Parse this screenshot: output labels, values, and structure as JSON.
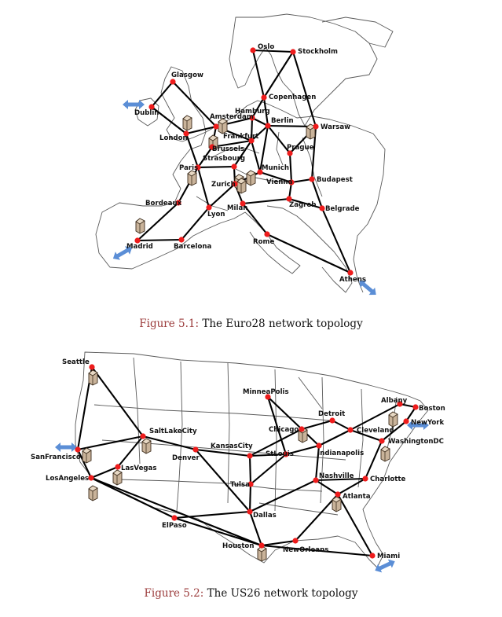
{
  "figures": [
    {
      "id": "euro28",
      "caption_number": "Figure 5.1:",
      "caption_text": "The Euro28 network topology",
      "nodes": [
        {
          "key": "oslo",
          "label": "Oslo"
        },
        {
          "key": "stockholm",
          "label": "Stockholm"
        },
        {
          "key": "glasgow",
          "label": "Glasgow"
        },
        {
          "key": "copenhagen",
          "label": "Copenhagen"
        },
        {
          "key": "dublin",
          "label": "Dublin"
        },
        {
          "key": "hamburg",
          "label": "Hamburg"
        },
        {
          "key": "amsterdam",
          "label": "Amsterdam"
        },
        {
          "key": "berlin",
          "label": "Berlin"
        },
        {
          "key": "warsaw",
          "label": "Warsaw"
        },
        {
          "key": "london",
          "label": "London"
        },
        {
          "key": "frankfurt",
          "label": "Frankfurt"
        },
        {
          "key": "brussels",
          "label": "Brussels"
        },
        {
          "key": "prague",
          "label": "Prague"
        },
        {
          "key": "strasbourg",
          "label": "Strasbourg"
        },
        {
          "key": "paris",
          "label": "Paris"
        },
        {
          "key": "munich",
          "label": "Munich"
        },
        {
          "key": "budapest",
          "label": "Budapest"
        },
        {
          "key": "zurich",
          "label": "Zurich"
        },
        {
          "key": "vienna",
          "label": "Vienna"
        },
        {
          "key": "bordeaux",
          "label": "Bordeaux"
        },
        {
          "key": "milan",
          "label": "Milan"
        },
        {
          "key": "zagreb",
          "label": "Zagreb"
        },
        {
          "key": "belgrade",
          "label": "Belgrade"
        },
        {
          "key": "lyon",
          "label": "Lyon"
        },
        {
          "key": "madrid",
          "label": "Madrid"
        },
        {
          "key": "barcelona",
          "label": "Barcelona"
        },
        {
          "key": "rome",
          "label": "Rome"
        },
        {
          "key": "athens",
          "label": "Athens"
        }
      ],
      "links": [
        [
          "oslo",
          "stockholm"
        ],
        [
          "oslo",
          "copenhagen"
        ],
        [
          "stockholm",
          "copenhagen"
        ],
        [
          "stockholm",
          "warsaw"
        ],
        [
          "glasgow",
          "dublin"
        ],
        [
          "glasgow",
          "amsterdam"
        ],
        [
          "dublin",
          "london"
        ],
        [
          "london",
          "amsterdam"
        ],
        [
          "london",
          "paris"
        ],
        [
          "amsterdam",
          "hamburg"
        ],
        [
          "amsterdam",
          "brussels"
        ],
        [
          "amsterdam",
          "frankfurt"
        ],
        [
          "hamburg",
          "copenhagen"
        ],
        [
          "hamburg",
          "berlin"
        ],
        [
          "hamburg",
          "frankfurt"
        ],
        [
          "copenhagen",
          "berlin"
        ],
        [
          "berlin",
          "warsaw"
        ],
        [
          "berlin",
          "prague"
        ],
        [
          "berlin",
          "munich"
        ],
        [
          "berlin",
          "frankfurt"
        ],
        [
          "warsaw",
          "prague"
        ],
        [
          "warsaw",
          "budapest"
        ],
        [
          "frankfurt",
          "brussels"
        ],
        [
          "frankfurt",
          "munich"
        ],
        [
          "frankfurt",
          "strasbourg"
        ],
        [
          "brussels",
          "paris"
        ],
        [
          "paris",
          "strasbourg"
        ],
        [
          "paris",
          "bordeaux"
        ],
        [
          "paris",
          "lyon"
        ],
        [
          "strasbourg",
          "zurich"
        ],
        [
          "zurich",
          "munich"
        ],
        [
          "zurich",
          "milan"
        ],
        [
          "zurich",
          "lyon"
        ],
        [
          "munich",
          "vienna"
        ],
        [
          "prague",
          "vienna"
        ],
        [
          "vienna",
          "budapest"
        ],
        [
          "vienna",
          "zagreb"
        ],
        [
          "budapest",
          "belgrade"
        ],
        [
          "zagreb",
          "belgrade"
        ],
        [
          "zagreb",
          "milan"
        ],
        [
          "milan",
          "rome"
        ],
        [
          "lyon",
          "barcelona"
        ],
        [
          "bordeaux",
          "madrid"
        ],
        [
          "madrid",
          "barcelona"
        ],
        [
          "rome",
          "athens"
        ],
        [
          "belgrade",
          "athens"
        ]
      ]
    },
    {
      "id": "us26",
      "caption_number": "Figure 5.2:",
      "caption_text": "The US26 network topology",
      "nodes": [
        {
          "key": "seattle",
          "label": "Seattle"
        },
        {
          "key": "minneapolis",
          "label": "MinneaPolis"
        },
        {
          "key": "albany",
          "label": "Albany"
        },
        {
          "key": "boston",
          "label": "Boston"
        },
        {
          "key": "detroit",
          "label": "Detroit"
        },
        {
          "key": "newyork",
          "label": "NewYork"
        },
        {
          "key": "saltlakecity",
          "label": "SaltLakeCity"
        },
        {
          "key": "chicago",
          "label": "Chicago"
        },
        {
          "key": "cleveland",
          "label": "Cleveland"
        },
        {
          "key": "washingtondc",
          "label": "WashingtonDC"
        },
        {
          "key": "kansascity",
          "label": "KansasCity"
        },
        {
          "key": "sanfrancisco",
          "label": "SanFrancisco"
        },
        {
          "key": "denver",
          "label": "Denver"
        },
        {
          "key": "stlouis",
          "label": "StLouis"
        },
        {
          "key": "indianapolis",
          "label": "Indianapolis"
        },
        {
          "key": "lasvegas",
          "label": "LasVegas"
        },
        {
          "key": "losangeles",
          "label": "LosAngeles"
        },
        {
          "key": "nashville",
          "label": "Nashville"
        },
        {
          "key": "charlotte",
          "label": "Charlotte"
        },
        {
          "key": "tulsa",
          "label": "Tulsa"
        },
        {
          "key": "atlanta",
          "label": "Atlanta"
        },
        {
          "key": "dallas",
          "label": "Dallas"
        },
        {
          "key": "elpaso",
          "label": "ElPaso"
        },
        {
          "key": "neworleans",
          "label": "NewOrleans"
        },
        {
          "key": "houston",
          "label": "Houston"
        },
        {
          "key": "miami",
          "label": "Miami"
        }
      ],
      "links": [
        [
          "seattle",
          "sanfrancisco"
        ],
        [
          "seattle",
          "saltlakecity"
        ],
        [
          "sanfrancisco",
          "saltlakecity"
        ],
        [
          "sanfrancisco",
          "losangeles"
        ],
        [
          "losangeles",
          "lasvegas"
        ],
        [
          "losangeles",
          "elpaso"
        ],
        [
          "lasvegas",
          "saltlakecity"
        ],
        [
          "saltlakecity",
          "denver"
        ],
        [
          "denver",
          "kansascity"
        ],
        [
          "denver",
          "dallas"
        ],
        [
          "kansascity",
          "stlouis"
        ],
        [
          "kansascity",
          "tulsa"
        ],
        [
          "kansascity",
          "chicago"
        ],
        [
          "minneapolis",
          "chicago"
        ],
        [
          "minneapolis",
          "stlouis"
        ],
        [
          "chicago",
          "detroit"
        ],
        [
          "chicago",
          "indianapolis"
        ],
        [
          "detroit",
          "cleveland"
        ],
        [
          "cleveland",
          "albany"
        ],
        [
          "cleveland",
          "washingtondc"
        ],
        [
          "cleveland",
          "indianapolis"
        ],
        [
          "albany",
          "boston"
        ],
        [
          "boston",
          "newyork"
        ],
        [
          "newyork",
          "washingtondc"
        ],
        [
          "washingtondc",
          "charlotte"
        ],
        [
          "stlouis",
          "indianapolis"
        ],
        [
          "stlouis",
          "tulsa"
        ],
        [
          "indianapolis",
          "nashville"
        ],
        [
          "nashville",
          "charlotte"
        ],
        [
          "nashville",
          "atlanta"
        ],
        [
          "nashville",
          "dallas"
        ],
        [
          "charlotte",
          "atlanta"
        ],
        [
          "atlanta",
          "neworleans"
        ],
        [
          "atlanta",
          "miami"
        ],
        [
          "tulsa",
          "dallas"
        ],
        [
          "dallas",
          "elpaso"
        ],
        [
          "dallas",
          "houston"
        ],
        [
          "elpaso",
          "houston"
        ],
        [
          "houston",
          "neworleans"
        ],
        [
          "houston",
          "miami"
        ],
        [
          "houston",
          "losangeles"
        ]
      ]
    }
  ]
}
